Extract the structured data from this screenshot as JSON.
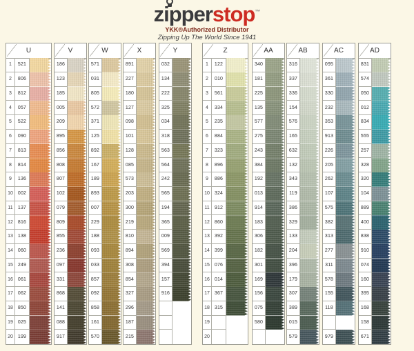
{
  "header": {
    "logo_zipper": "zipper",
    "logo_stop": "stop",
    "tm": "™",
    "subtitle": "YKK®Authorized Distributor",
    "tagline": "Zipping Up The World Since 1941"
  },
  "chart": {
    "columns": [
      {
        "label": "U",
        "numbered": true,
        "rows": [
          {
            "n": "1",
            "code": "521",
            "color": "#F2D8A2"
          },
          {
            "n": "2",
            "code": "806",
            "color": "#EDC2AA"
          },
          {
            "n": "3",
            "code": "812",
            "color": "#E7B0A6"
          },
          {
            "n": "4",
            "code": "057",
            "color": "#EFBA8E"
          },
          {
            "n": "5",
            "code": "522",
            "color": "#F1BD7F"
          },
          {
            "n": "6",
            "code": "090",
            "color": "#EDA47E"
          },
          {
            "n": "7",
            "code": "813",
            "color": "#E68D54"
          },
          {
            "n": "8",
            "code": "814",
            "color": "#E38A46"
          },
          {
            "n": "9",
            "code": "136",
            "color": "#DD7C59"
          },
          {
            "n": "10",
            "code": "002",
            "color": "#D4615A"
          },
          {
            "n": "11",
            "code": "137",
            "color": "#C75447"
          },
          {
            "n": "12",
            "code": "816",
            "color": "#CE4D37"
          },
          {
            "n": "13",
            "code": "138",
            "color": "#C43F2E"
          },
          {
            "n": "14",
            "code": "060",
            "color": "#BC5A50"
          },
          {
            "n": "15",
            "code": "249",
            "color": "#B05C53"
          },
          {
            "n": "16",
            "code": "061",
            "color": "#A84A41"
          },
          {
            "n": "17",
            "code": "062",
            "color": "#9B4F41"
          },
          {
            "n": "18",
            "code": "850",
            "color": "#8F483B"
          },
          {
            "n": "19",
            "code": "025",
            "color": "#7F443B"
          },
          {
            "n": "20",
            "code": "199",
            "color": "#793D35"
          }
        ]
      },
      {
        "label": "V",
        "numbered": false,
        "rows": [
          {
            "code": "186",
            "color": "#D9D3C5"
          },
          {
            "code": "123",
            "color": "#E4D5B6"
          },
          {
            "code": "185",
            "color": "#F0E5C6"
          },
          {
            "code": "005",
            "color": "#E8C7A2"
          },
          {
            "code": "209",
            "color": "#F0D5AE"
          },
          {
            "code": "895",
            "color": "#D49646"
          },
          {
            "code": "856",
            "color": "#C98840"
          },
          {
            "code": "808",
            "color": "#C57D36"
          },
          {
            "code": "807",
            "color": "#BE6F2C"
          },
          {
            "code": "102",
            "color": "#A55A22"
          },
          {
            "code": "079",
            "color": "#A35D2F"
          },
          {
            "code": "809",
            "color": "#A94E2E"
          },
          {
            "code": "855",
            "color": "#A04B38"
          },
          {
            "code": "236",
            "color": "#8E4433"
          },
          {
            "code": "097",
            "color": "#883A30"
          },
          {
            "code": "331",
            "color": "#8E4A3E"
          },
          {
            "code": "868",
            "color": "#564F3A"
          },
          {
            "code": "141",
            "color": "#4F4A36"
          },
          {
            "code": "088",
            "color": "#474230"
          },
          {
            "code": "917",
            "color": "#423C2E"
          }
        ]
      },
      {
        "label": "W",
        "numbered": false,
        "rows": [
          {
            "code": "571",
            "color": "#DCC9A0"
          },
          {
            "code": "031",
            "color": "#F3E9C6"
          },
          {
            "code": "805",
            "color": "#F4EBBA"
          },
          {
            "code": "572",
            "color": "#CFC5A0"
          },
          {
            "code": "371",
            "color": "#EEE5B8"
          },
          {
            "code": "125",
            "color": "#EFE0A6"
          },
          {
            "code": "892",
            "color": "#CBB068"
          },
          {
            "code": "167",
            "color": "#D2AE5C"
          },
          {
            "code": "189",
            "color": "#CBA452"
          },
          {
            "code": "893",
            "color": "#BC9A4A"
          },
          {
            "code": "007",
            "color": "#B69346"
          },
          {
            "code": "229",
            "color": "#AD8D42"
          },
          {
            "code": "188",
            "color": "#AE9048"
          },
          {
            "code": "093",
            "color": "#A88940"
          },
          {
            "code": "033",
            "color": "#A0833D"
          },
          {
            "code": "857",
            "color": "#9D7F3E"
          },
          {
            "code": "092",
            "color": "#967839"
          },
          {
            "code": "858",
            "color": "#8D7136"
          },
          {
            "code": "161",
            "color": "#846A33"
          },
          {
            "code": "570",
            "color": "#6A592D"
          }
        ]
      },
      {
        "label": "X",
        "numbered": false,
        "rows": [
          {
            "code": "891",
            "color": "#E1D1A9"
          },
          {
            "code": "227",
            "color": "#DAC99F"
          },
          {
            "code": "180",
            "color": "#D5C499"
          },
          {
            "code": "127",
            "color": "#D9C9A1"
          },
          {
            "code": "098",
            "color": "#D1BF93"
          },
          {
            "code": "101",
            "color": "#D7C599"
          },
          {
            "code": "128",
            "color": "#CAB98D"
          },
          {
            "code": "085",
            "color": "#C5B58B"
          },
          {
            "code": "573",
            "color": "#CCBD97"
          },
          {
            "code": "203",
            "color": "#C0AF83"
          },
          {
            "code": "300",
            "color": "#B5A579"
          },
          {
            "code": "219",
            "color": "#B9A97F"
          },
          {
            "code": "810",
            "color": "#C3B595"
          },
          {
            "code": "894",
            "color": "#B1A37D"
          },
          {
            "code": "308",
            "color": "#AD9F81"
          },
          {
            "code": "854",
            "color": "#B3A78D"
          },
          {
            "code": "327",
            "color": "#A99D85"
          },
          {
            "code": "296",
            "color": "#A59B89"
          },
          {
            "code": "187",
            "color": "#9B9181"
          },
          {
            "code": "215",
            "color": "#8D7770"
          }
        ]
      },
      {
        "label": "Y",
        "numbered": false,
        "rows": [
          {
            "code": "032",
            "color": "#9B9579"
          },
          {
            "code": "134",
            "color": "#8F8D75"
          },
          {
            "code": "222",
            "color": "#88876D"
          },
          {
            "code": "325",
            "color": "#7F7F63"
          },
          {
            "code": "034",
            "color": "#74755B"
          },
          {
            "code": "318",
            "color": "#6F715B"
          },
          {
            "code": "563",
            "color": "#767758"
          },
          {
            "code": "564",
            "color": "#71735B"
          },
          {
            "code": "242",
            "color": "#6A6C53"
          },
          {
            "code": "565",
            "color": "#6F7155"
          },
          {
            "code": "194",
            "color": "#63654F"
          },
          {
            "code": "365",
            "color": "#5E6149"
          },
          {
            "code": "009",
            "color": "#575B45"
          },
          {
            "code": "569",
            "color": "#535742"
          },
          {
            "code": "394",
            "color": "#4B4F3D"
          },
          {
            "code": "157",
            "color": "#464A37"
          },
          {
            "code": "916",
            "color": "#3F4330"
          },
          {
            "code": "",
            "color": ""
          },
          {
            "code": "",
            "color": ""
          },
          {
            "code": "",
            "color": ""
          }
        ]
      },
      {
        "label": "Z",
        "numbered": true,
        "rows": [
          {
            "n": "1",
            "code": "122",
            "color": "#F0EECB"
          },
          {
            "n": "2",
            "code": "010",
            "color": "#DFE0AB"
          },
          {
            "n": "3",
            "code": "561",
            "color": "#C8CB9B"
          },
          {
            "n": "4",
            "code": "334",
            "color": "#B6BD8F"
          },
          {
            "n": "5",
            "code": "235",
            "color": "#C3C7A3"
          },
          {
            "n": "6",
            "code": "884",
            "color": "#A9B285"
          },
          {
            "n": "7",
            "code": "323",
            "color": "#A0AB7F"
          },
          {
            "n": "8",
            "code": "896",
            "color": "#97A273"
          },
          {
            "n": "9",
            "code": "886",
            "color": "#8D9869"
          },
          {
            "n": "10",
            "code": "324",
            "color": "#859164"
          },
          {
            "n": "11",
            "code": "912",
            "color": "#7D8B61"
          },
          {
            "n": "12",
            "code": "860",
            "color": "#6F7D55"
          },
          {
            "n": "13",
            "code": "392",
            "color": "#65734D"
          },
          {
            "n": "14",
            "code": "399",
            "color": "#5B6948"
          },
          {
            "n": "15",
            "code": "076",
            "color": "#576445"
          },
          {
            "n": "16",
            "code": "014",
            "color": "#4F5D3F"
          },
          {
            "n": "17",
            "code": "367",
            "color": "#495741"
          },
          {
            "n": "18",
            "code": "315",
            "color": "#414F39"
          },
          {
            "n": "19",
            "code": "",
            "color": ""
          },
          {
            "n": "20",
            "code": "",
            "color": ""
          }
        ]
      },
      {
        "label": "AA",
        "numbered": false,
        "rows": [
          {
            "code": "340",
            "color": "#9CA58A"
          },
          {
            "code": "181",
            "color": "#949D83"
          },
          {
            "code": "225",
            "color": "#8E977D"
          },
          {
            "code": "135",
            "color": "#88927B"
          },
          {
            "code": "577",
            "color": "#838D79"
          },
          {
            "code": "275",
            "color": "#7B8673"
          },
          {
            "code": "243",
            "color": "#75806B"
          },
          {
            "code": "384",
            "color": "#6F7A67"
          },
          {
            "code": "192",
            "color": "#697566"
          },
          {
            "code": "013",
            "color": "#606C5D"
          },
          {
            "code": "914",
            "color": "#5A675A"
          },
          {
            "code": "183",
            "color": "#556153"
          },
          {
            "code": "306",
            "color": "#4F5B4D"
          },
          {
            "code": "182",
            "color": "#495549"
          },
          {
            "code": "301",
            "color": "#445044"
          },
          {
            "code": "169",
            "color": "#31393B"
          },
          {
            "code": "156",
            "color": "#3D4941"
          },
          {
            "code": "075",
            "color": "#374339"
          },
          {
            "code": "580",
            "color": "#2F3B31"
          },
          {
            "code": "",
            "color": ""
          }
        ]
      },
      {
        "label": "AB",
        "numbered": false,
        "rows": [
          {
            "code": "316",
            "color": "#DFE3D8"
          },
          {
            "code": "337",
            "color": "#DADED2"
          },
          {
            "code": "336",
            "color": "#D5DBCD"
          },
          {
            "code": "154",
            "color": "#D1D7C9"
          },
          {
            "code": "576",
            "color": "#CBD3C3"
          },
          {
            "code": "165",
            "color": "#C6CFBE"
          },
          {
            "code": "632",
            "color": "#C1CBB9"
          },
          {
            "code": "132",
            "color": "#BCC6B4"
          },
          {
            "code": "343",
            "color": "#B6C0AF"
          },
          {
            "code": "119",
            "color": "#B1BBAA"
          },
          {
            "code": "386",
            "color": "#ABB6A5"
          },
          {
            "code": "329",
            "color": "#A6B1A0"
          },
          {
            "code": "133",
            "color": "#C4CCBC"
          },
          {
            "code": "204",
            "color": "#C8CEBA"
          },
          {
            "code": "396",
            "color": "#AFB9A9"
          },
          {
            "code": "179",
            "color": "#A9B3A3"
          },
          {
            "code": "307",
            "color": "#77847B"
          },
          {
            "code": "389",
            "color": "#5B6B5F"
          },
          {
            "code": "015",
            "color": "#4F5F53"
          },
          {
            "code": "579",
            "color": "#47575D"
          }
        ]
      },
      {
        "label": "AC",
        "numbered": false,
        "rows": [
          {
            "code": "095",
            "color": "#BDC9CD"
          },
          {
            "code": "361",
            "color": "#A0B1B9"
          },
          {
            "code": "330",
            "color": "#94A7AF"
          },
          {
            "code": "232",
            "color": "#A9B9BD"
          },
          {
            "code": "353",
            "color": "#7B969B"
          },
          {
            "code": "913",
            "color": "#708D91"
          },
          {
            "code": "226",
            "color": "#7F969D"
          },
          {
            "code": "205",
            "color": "#85A1A5"
          },
          {
            "code": "262",
            "color": "#6E8F93"
          },
          {
            "code": "107",
            "color": "#608589"
          },
          {
            "code": "575",
            "color": "#507579"
          },
          {
            "code": "382",
            "color": "#5B7577"
          },
          {
            "code": "313",
            "color": "#4F6B6F"
          },
          {
            "code": "277",
            "color": "#8B9395"
          },
          {
            "code": "311",
            "color": "#7F8B91"
          },
          {
            "code": "578",
            "color": "#6F7B81"
          },
          {
            "code": "155",
            "color": "#45595F"
          },
          {
            "code": "118",
            "color": "#577379"
          },
          {
            "code": "",
            "color": ""
          },
          {
            "code": "979",
            "color": "#3F5155"
          }
        ]
      },
      {
        "label": "AD",
        "numbered": false,
        "rows": [
          {
            "code": "831",
            "color": "#C3CDB5"
          },
          {
            "code": "574",
            "color": "#C1C9BF"
          },
          {
            "code": "050",
            "color": "#59AFB1"
          },
          {
            "code": "012",
            "color": "#49A9B1"
          },
          {
            "code": "834",
            "color": "#3BADB5"
          },
          {
            "code": "555",
            "color": "#3F9BA5"
          },
          {
            "code": "257",
            "color": "#9FB4A5"
          },
          {
            "code": "328",
            "color": "#85A68C"
          },
          {
            "code": "320",
            "color": "#377E7B"
          },
          {
            "code": "104",
            "color": "#7F9398"
          },
          {
            "code": "889",
            "color": "#4A8272"
          },
          {
            "code": "400",
            "color": "#2F6571"
          },
          {
            "code": "838",
            "color": "#2D4B67"
          },
          {
            "code": "910",
            "color": "#2B4363"
          },
          {
            "code": "074",
            "color": "#253B55"
          },
          {
            "code": "160",
            "color": "#3B4555"
          },
          {
            "code": "395",
            "color": "#3B434A"
          },
          {
            "code": "168",
            "color": "#3A453F"
          },
          {
            "code": "158",
            "color": "#303B39"
          },
          {
            "code": "671",
            "color": "#333F45"
          }
        ]
      }
    ]
  }
}
